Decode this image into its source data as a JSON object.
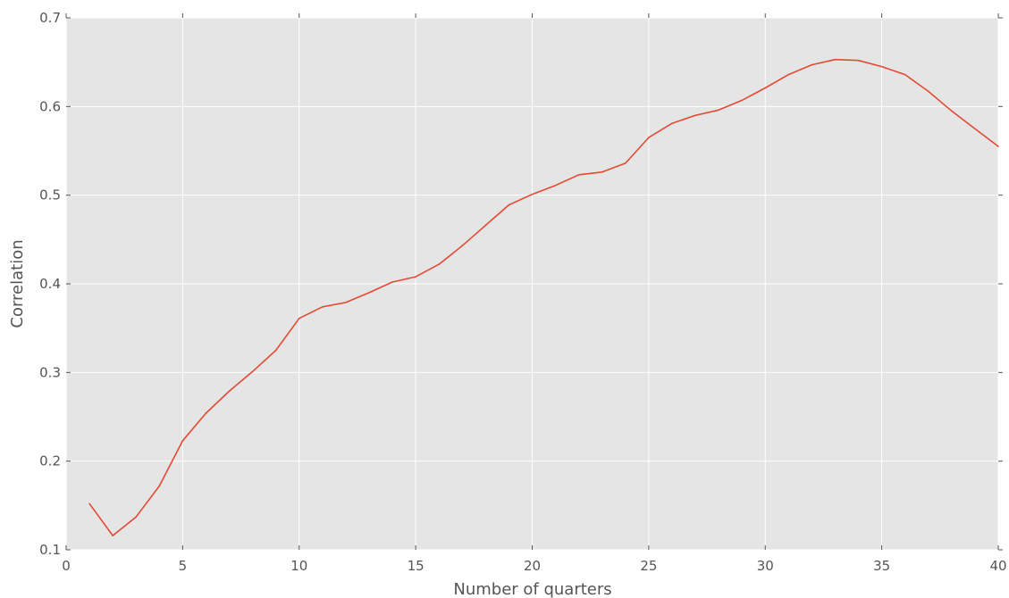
{
  "chart_data": {
    "type": "line",
    "title": "",
    "xlabel": "Number of quarters",
    "ylabel": "Correlation",
    "xlim": [
      0,
      40
    ],
    "ylim": [
      0.1,
      0.7
    ],
    "xticks": [
      0,
      5,
      10,
      15,
      20,
      25,
      30,
      35,
      40
    ],
    "yticks": [
      0.1,
      0.2,
      0.3,
      0.4,
      0.5,
      0.6,
      0.7
    ],
    "xtick_labels": [
      "0",
      "5",
      "10",
      "15",
      "20",
      "25",
      "30",
      "35",
      "40"
    ],
    "ytick_labels": [
      "0.1",
      "0.2",
      "0.3",
      "0.4",
      "0.5",
      "0.6",
      "0.7"
    ],
    "grid": true,
    "legend": "none",
    "colors": {
      "background": "#e5e5e5",
      "grid": "#ffffff",
      "line": "#e24a33"
    },
    "series": [
      {
        "x": [
          1,
          2,
          3,
          4,
          5,
          6,
          7,
          8,
          9,
          10,
          11,
          12,
          13,
          14,
          15,
          16,
          17,
          18,
          19,
          20,
          21,
          22,
          23,
          24,
          25,
          26,
          27,
          28,
          29,
          30,
          31,
          32,
          33,
          34,
          35,
          36,
          37,
          38,
          39,
          40
        ],
        "y": [
          0.152,
          0.116,
          0.137,
          0.172,
          0.223,
          0.254,
          0.279,
          0.301,
          0.325,
          0.361,
          0.374,
          0.379,
          0.39,
          0.402,
          0.408,
          0.422,
          0.443,
          0.466,
          0.489,
          0.501,
          0.511,
          0.523,
          0.526,
          0.536,
          0.565,
          0.581,
          0.59,
          0.596,
          0.607,
          0.621,
          0.636,
          0.647,
          0.653,
          0.652,
          0.645,
          0.636,
          0.617,
          0.595,
          0.575,
          0.555
        ]
      }
    ]
  }
}
